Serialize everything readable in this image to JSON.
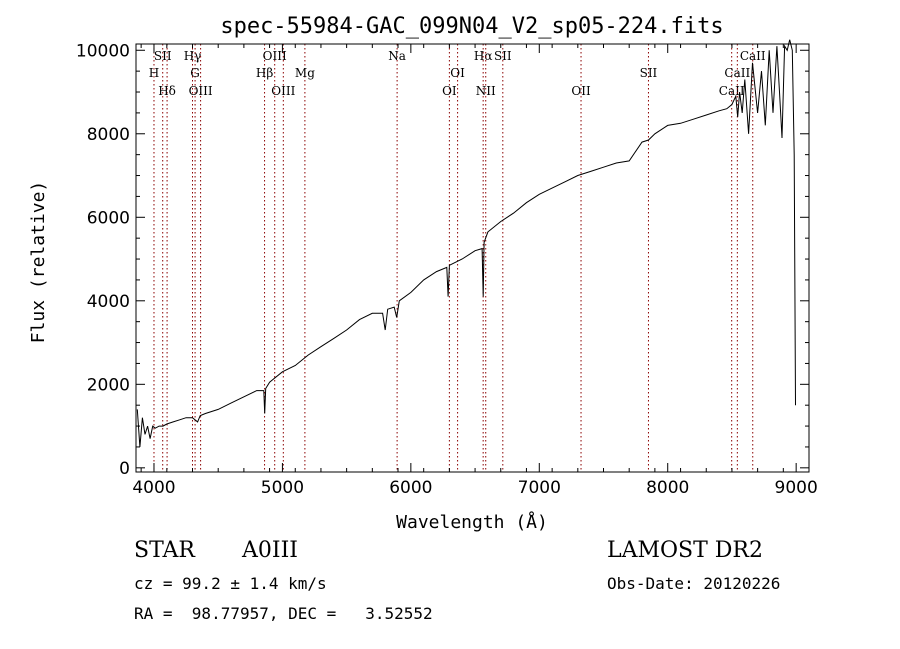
{
  "chart_data": {
    "type": "line",
    "title": "spec-55984-GAC_099N04_V2_sp05-224.fits",
    "xlabel": "Wavelength (Å)",
    "ylabel": "Flux (relative)",
    "xlim": [
      3860,
      9100
    ],
    "ylim": [
      -100,
      10150
    ],
    "xticks": [
      4000,
      5000,
      6000,
      7000,
      8000,
      9000
    ],
    "yticks": [
      0,
      2000,
      4000,
      6000,
      8000,
      10000
    ],
    "grid": false,
    "line_color": "#000000",
    "marker_color": "#8b0000",
    "series": [
      {
        "x": [
          3870,
          3890,
          3910,
          3930,
          3950,
          3970,
          3990,
          4010,
          4040,
          4070,
          4100,
          4150,
          4200,
          4250,
          4300,
          4340,
          4360,
          4400,
          4500,
          4600,
          4700,
          4800,
          4855,
          4862,
          4870,
          4900,
          5000,
          5100,
          5200,
          5300,
          5400,
          5500,
          5600,
          5700,
          5780,
          5800,
          5820,
          5870,
          5890,
          5910,
          6000,
          6100,
          6200,
          6280,
          6290,
          6300,
          6400,
          6500,
          6555,
          6563,
          6570,
          6600,
          6700,
          6800,
          6900,
          7000,
          7100,
          7200,
          7300,
          7400,
          7500,
          7600,
          7700,
          7800,
          7850,
          7900,
          8000,
          8100,
          8200,
          8300,
          8400,
          8460,
          8500,
          8530,
          8545,
          8560,
          8580,
          8600,
          8630,
          8660,
          8700,
          8730,
          8760,
          8790,
          8820,
          8850,
          8870,
          8890,
          8910,
          8930,
          8950,
          8970,
          8985,
          8995
        ],
        "y": [
          1400,
          500,
          1200,
          800,
          1000,
          700,
          1000,
          950,
          1000,
          1000,
          1050,
          1100,
          1150,
          1200,
          1200,
          1100,
          1250,
          1300,
          1400,
          1550,
          1700,
          1850,
          1850,
          1300,
          1900,
          2050,
          2300,
          2450,
          2700,
          2900,
          3100,
          3300,
          3550,
          3700,
          3700,
          3300,
          3800,
          3850,
          3600,
          4000,
          4200,
          4500,
          4700,
          4800,
          4100,
          4850,
          5000,
          5200,
          5250,
          4100,
          5400,
          5650,
          5900,
          6100,
          6350,
          6550,
          6700,
          6850,
          7000,
          7100,
          7200,
          7300,
          7350,
          7800,
          7850,
          8000,
          8200,
          8250,
          8350,
          8450,
          8550,
          8600,
          8700,
          8900,
          8400,
          9000,
          8500,
          9300,
          8000,
          9700,
          8500,
          9500,
          8200,
          10000,
          8500,
          10100,
          9000,
          7900,
          10100,
          10000,
          10250,
          10000,
          7500,
          1500
        ]
      }
    ],
    "lines": [
      {
        "label": "H",
        "x": 4000,
        "row": 1
      },
      {
        "label": "SII",
        "x": 4068,
        "row": 0
      },
      {
        "label": "Hδ",
        "x": 4102,
        "row": 2
      },
      {
        "label": "Hγ",
        "x": 4300,
        "row": 0
      },
      {
        "label": "G",
        "x": 4320,
        "row": 1
      },
      {
        "label": "OIII",
        "x": 4363,
        "row": 2
      },
      {
        "label": "Hβ",
        "x": 4861,
        "row": 1
      },
      {
        "label": "OIII",
        "x": 4940,
        "row": 0
      },
      {
        "label": "OIII",
        "x": 5007,
        "row": 2
      },
      {
        "label": "Mg",
        "x": 5175,
        "row": 1
      },
      {
        "label": "Na",
        "x": 5893,
        "row": 0
      },
      {
        "label": "OI",
        "x": 6300,
        "row": 2
      },
      {
        "label": "OI",
        "x": 6364,
        "row": 1
      },
      {
        "label": "Hα",
        "x": 6563,
        "row": 0
      },
      {
        "label": "NII",
        "x": 6583,
        "row": 2
      },
      {
        "label": "SII",
        "x": 6716,
        "row": 0
      },
      {
        "label": "OII",
        "x": 7325,
        "row": 2
      },
      {
        "label": "SII",
        "x": 7850,
        "row": 1
      },
      {
        "label": "CaII",
        "x": 8498,
        "row": 2
      },
      {
        "label": "CaII",
        "x": 8542,
        "row": 1
      },
      {
        "label": "CaII",
        "x": 8662,
        "row": 0
      }
    ]
  },
  "info": {
    "object_class": "STAR",
    "subclass": "A0III",
    "survey": "LAMOST DR2",
    "redshift": "cz = 99.2 ± 1.4 km/s",
    "obs_date": "Obs-Date: 20120226",
    "coords": "RA =  98.77957, DEC =   3.52552"
  }
}
